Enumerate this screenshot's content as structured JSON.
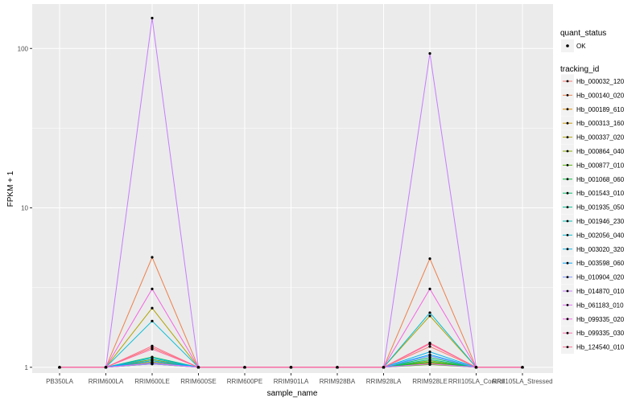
{
  "chart_data": {
    "type": "line",
    "xlabel": "sample_name",
    "ylabel": "FPKM + 1",
    "y_scale": "log10",
    "ylim": [
      0.92,
      190
    ],
    "y_ticks": [
      {
        "value": 1,
        "label": "1"
      },
      {
        "value": 10,
        "label": "10"
      },
      {
        "value": 100,
        "label": "100"
      }
    ],
    "categories": [
      "PB350LA",
      "RRIM600LA",
      "RRIM600LE",
      "RRIM600SE",
      "RRIM600PE",
      "RRIM901LA",
      "RRIM928BA",
      "RRIM928LA",
      "RRIM928LE",
      "RRII105LA_Control",
      "RRII105LA_Stressed"
    ],
    "grid": true,
    "legend_position": "right",
    "legend_groups": [
      {
        "title": "quant_status",
        "items": [
          "OK"
        ]
      },
      {
        "title": "tracking_id"
      }
    ],
    "point_color": "#000000",
    "background_color": "#EBEBEB",
    "series": [
      {
        "name": "Hb_000032_120",
        "color": "#F8766D",
        "values": [
          1,
          1,
          1.33,
          1,
          1,
          1,
          1,
          1,
          1.35,
          1,
          1
        ]
      },
      {
        "name": "Hb_000140_020",
        "color": "#EE7F4A",
        "values": [
          1,
          1,
          4.9,
          1,
          1,
          1,
          1,
          1,
          4.8,
          1,
          1
        ]
      },
      {
        "name": "Hb_000189_610",
        "color": "#DF8A00",
        "values": [
          1,
          1,
          1.08,
          1,
          1,
          1,
          1,
          1,
          1.07,
          1,
          1
        ]
      },
      {
        "name": "Hb_000313_160",
        "color": "#C99800",
        "values": [
          1,
          1,
          1.05,
          1,
          1,
          1,
          1,
          1,
          1.06,
          1,
          1
        ]
      },
      {
        "name": "Hb_000337_020",
        "color": "#AEA200",
        "values": [
          1,
          1,
          2.35,
          1,
          1,
          1,
          1,
          1,
          2.1,
          1,
          1
        ]
      },
      {
        "name": "Hb_000864_040",
        "color": "#8BAB00",
        "values": [
          1,
          1,
          1.12,
          1,
          1,
          1,
          1,
          1,
          1.1,
          1,
          1
        ]
      },
      {
        "name": "Hb_000877_010",
        "color": "#53B400",
        "values": [
          1,
          1,
          1.05,
          1,
          1,
          1,
          1,
          1,
          1.04,
          1,
          1
        ]
      },
      {
        "name": "Hb_001068_060",
        "color": "#00BA38",
        "values": [
          1,
          1,
          1.1,
          1,
          1,
          1,
          1,
          1,
          1.08,
          1,
          1
        ]
      },
      {
        "name": "Hb_001543_010",
        "color": "#00BE6C",
        "values": [
          1,
          1,
          1.16,
          1,
          1,
          1,
          1,
          1,
          1.15,
          1,
          1
        ]
      },
      {
        "name": "Hb_001935_050",
        "color": "#00C094",
        "values": [
          1,
          1,
          1.07,
          1,
          1,
          1,
          1,
          1,
          1.12,
          1,
          1
        ]
      },
      {
        "name": "Hb_001946_230",
        "color": "#00C0B7",
        "values": [
          1,
          1,
          1.06,
          1,
          1,
          1,
          1,
          1,
          1.05,
          1,
          1
        ]
      },
      {
        "name": "Hb_002056_040",
        "color": "#00BDD3",
        "values": [
          1,
          1,
          1.95,
          1,
          1,
          1,
          1,
          1,
          2.2,
          1,
          1
        ]
      },
      {
        "name": "Hb_003020_320",
        "color": "#00B5EA",
        "values": [
          1,
          1,
          1.14,
          1,
          1,
          1,
          1,
          1,
          1.25,
          1,
          1
        ]
      },
      {
        "name": "Hb_003598_060",
        "color": "#00A9FF",
        "values": [
          1,
          1,
          1.1,
          1,
          1,
          1,
          1,
          1,
          1.2,
          1,
          1
        ]
      },
      {
        "name": "Hb_010904_020",
        "color": "#7F97FF",
        "values": [
          1,
          1,
          1.05,
          1,
          1,
          1,
          1,
          1,
          1.18,
          1,
          1
        ]
      },
      {
        "name": "Hb_014870_010",
        "color": "#C77CFF",
        "values": [
          1,
          1,
          155,
          1,
          1,
          1,
          1,
          1,
          93,
          1,
          1
        ]
      },
      {
        "name": "Hb_061183_010",
        "color": "#E26EF7",
        "values": [
          1,
          1,
          1.06,
          1,
          1,
          1,
          1,
          1,
          1.05,
          1,
          1
        ]
      },
      {
        "name": "Hb_099335_020",
        "color": "#F564E3",
        "values": [
          1,
          1,
          3.1,
          1,
          1,
          1,
          1,
          1,
          3.1,
          1,
          1
        ]
      },
      {
        "name": "Hb_099335_030",
        "color": "#FE6DA8",
        "values": [
          1,
          1,
          1.3,
          1,
          1,
          1,
          1,
          1,
          1.4,
          1,
          1
        ]
      },
      {
        "name": "Hb_124540_010",
        "color": "#FF6C91",
        "values": [
          1,
          1,
          1.36,
          1,
          1,
          1,
          1,
          1,
          1.42,
          1,
          1
        ]
      }
    ]
  }
}
